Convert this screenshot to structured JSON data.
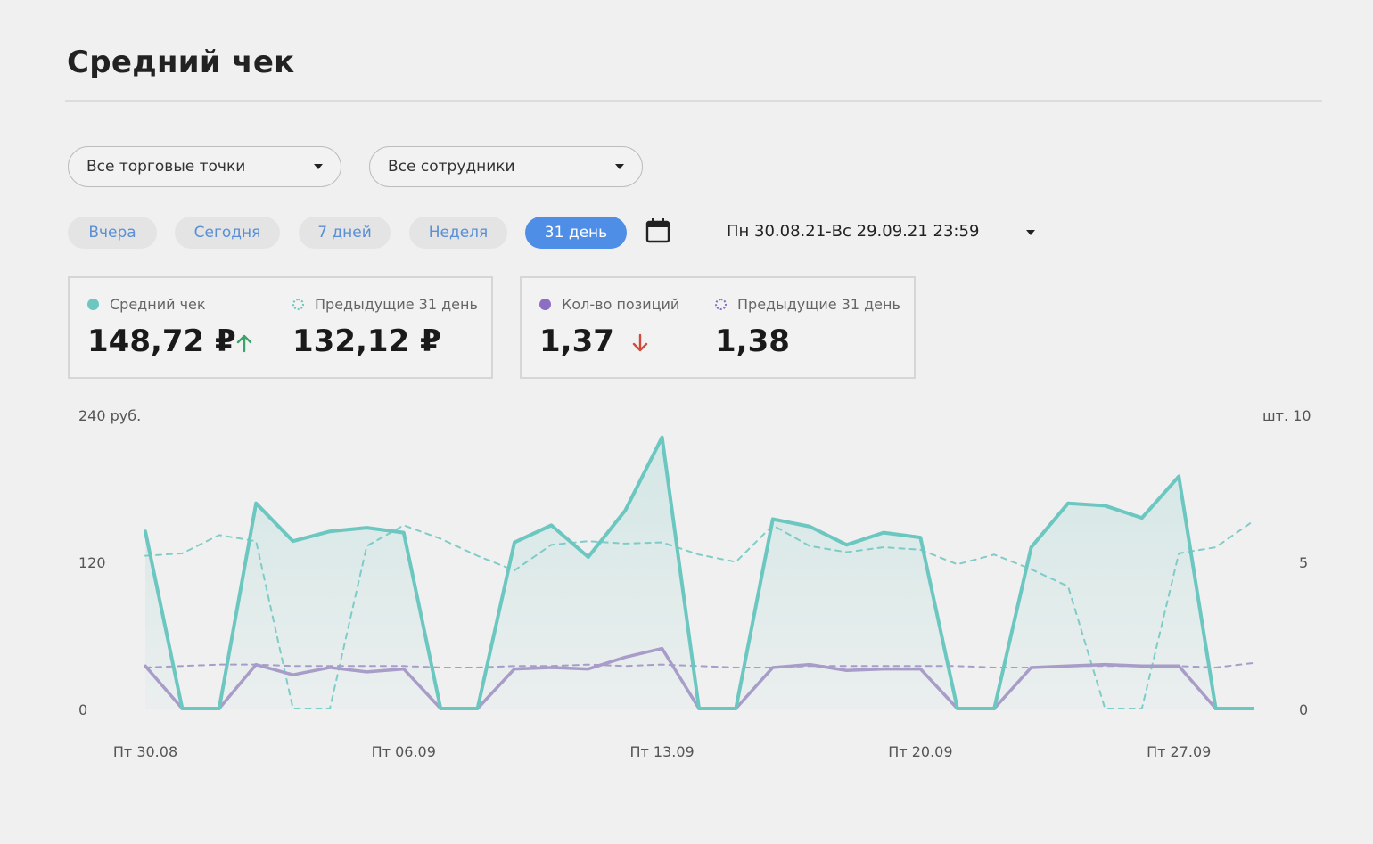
{
  "header": {
    "title": "Средний чек"
  },
  "filters": {
    "outlets": "Все торговые точки",
    "employees": "Все сотрудники"
  },
  "periods": [
    {
      "label": "Вчера",
      "active": false
    },
    {
      "label": "Сегодня",
      "active": false
    },
    {
      "label": "7 дней",
      "active": false
    },
    {
      "label": "Неделя",
      "active": false
    },
    {
      "label": "31 день",
      "active": true
    }
  ],
  "date_range": "Пн 30.08.21-Вс 29.09.21 23:59",
  "icons": {
    "calendar": "calendar-icon",
    "up": "arrow-up-icon",
    "down": "arrow-down-icon"
  },
  "colors": {
    "avg_check": "#6cc7c1",
    "positions": "#a89cc8",
    "active_pill": "#4e8ee6",
    "up": "#3aa36b",
    "down": "#d24a3c"
  },
  "cards": {
    "avg_check": {
      "label": "Средний чек",
      "value": "148,72 ₽",
      "prev_label": "Предыдущие 31 день",
      "prev_value": "132,12 ₽",
      "trend": "up"
    },
    "positions": {
      "label": "Кол-во позиций",
      "value": "1,37",
      "prev_label": "Предыдущие 31 день",
      "prev_value": "1,38",
      "trend": "down"
    }
  },
  "chart_data": {
    "type": "line",
    "y_left": {
      "label": "240 руб.",
      "ticks": [
        "120",
        "0"
      ],
      "range": [
        0,
        240
      ]
    },
    "y_right": {
      "label": "шт. 10",
      "ticks": [
        "5",
        "0"
      ],
      "range": [
        0,
        10
      ]
    },
    "x_tick_labels": [
      "Пт 30.08",
      "Пт 06.09",
      "Пт 13.09",
      "Пт 20.09",
      "Пт 27.09"
    ],
    "x_tick_index": [
      0,
      7,
      14,
      21,
      28
    ],
    "series": [
      {
        "axis": "left",
        "style": "solid",
        "values": [
          145,
          0,
          0,
          168,
          137,
          145,
          148,
          144,
          0,
          0,
          136,
          150,
          124,
          162,
          222,
          0,
          0,
          155,
          149,
          134,
          144,
          140,
          0,
          0,
          132,
          168,
          166,
          156,
          190,
          0,
          0
        ]
      },
      {
        "axis": "left",
        "style": "dashed",
        "values": [
          125,
          127,
          142,
          137,
          0,
          0,
          133,
          150,
          139,
          125,
          113,
          134,
          137,
          135,
          136,
          126,
          120,
          150,
          133,
          128,
          132,
          130,
          118,
          126,
          114,
          100,
          0,
          0,
          127,
          132,
          153
        ]
      },
      {
        "axis": "right",
        "style": "solid",
        "values": [
          1.45,
          0,
          0,
          1.5,
          1.15,
          1.4,
          1.25,
          1.35,
          0,
          0,
          1.35,
          1.4,
          1.35,
          1.75,
          2.05,
          0,
          0,
          1.4,
          1.5,
          1.3,
          1.35,
          1.35,
          0,
          0,
          1.4,
          1.45,
          1.5,
          1.45,
          1.45,
          0,
          0
        ]
      },
      {
        "axis": "right",
        "style": "dashed",
        "values": [
          1.4,
          1.45,
          1.5,
          1.5,
          1.45,
          1.45,
          1.45,
          1.45,
          1.4,
          1.4,
          1.45,
          1.45,
          1.5,
          1.45,
          1.5,
          1.45,
          1.4,
          1.4,
          1.45,
          1.45,
          1.45,
          1.45,
          1.45,
          1.4,
          1.4,
          1.45,
          1.45,
          1.45,
          1.45,
          1.4,
          1.55
        ]
      }
    ]
  }
}
